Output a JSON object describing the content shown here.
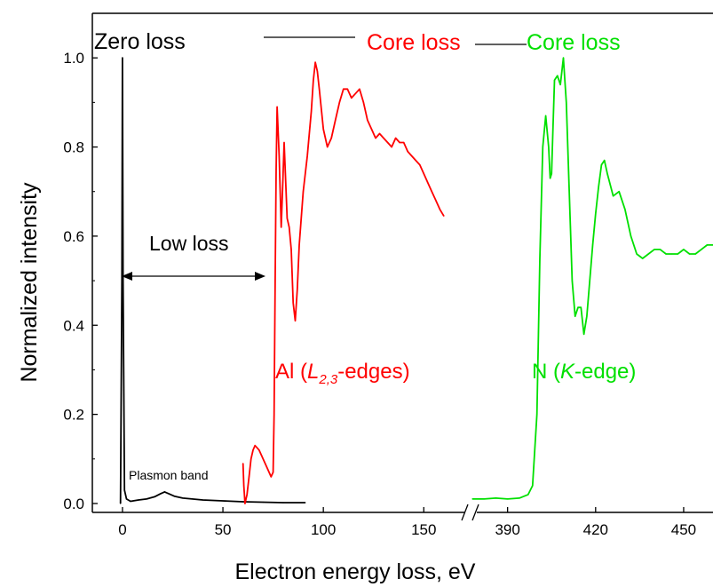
{
  "chart_data": {
    "type": "line",
    "xlabel": "Electron energy loss, eV",
    "ylabel": "Normalized intensity",
    "x_axis_segments": [
      {
        "range": [
          -15,
          168
        ],
        "ticks": [
          0,
          50,
          100,
          150
        ],
        "tick_labels": [
          "0",
          "50",
          "100",
          "150"
        ]
      },
      {
        "range": [
          378,
          460
        ],
        "ticks": [
          390,
          420,
          450
        ],
        "tick_labels": [
          "390",
          "420",
          "450"
        ]
      }
    ],
    "axis_break": true,
    "ylim": [
      -0.02,
      1.1
    ],
    "y_ticks": [
      0.0,
      0.2,
      0.4,
      0.6,
      0.8,
      1.0
    ],
    "y_tick_labels": [
      "0.0",
      "0.2",
      "0.4",
      "0.6",
      "0.8",
      "1.0"
    ],
    "grid": false,
    "series": [
      {
        "color": "#000000",
        "x": [
          -1,
          -0.3,
          0,
          0.3,
          1,
          2,
          4,
          8,
          12,
          16,
          19,
          21,
          23,
          26,
          30,
          40,
          50,
          60,
          70,
          80,
          91
        ],
        "y": [
          0.0,
          0.5,
          1.0,
          0.5,
          0.03,
          0.01,
          0.005,
          0.008,
          0.01,
          0.015,
          0.022,
          0.026,
          0.022,
          0.016,
          0.012,
          0.008,
          0.006,
          0.004,
          0.003,
          0.002,
          0.002
        ]
      },
      {
        "color": "#ff0000",
        "x": [
          60,
          60.4,
          61,
          62,
          63,
          64,
          65,
          66,
          67,
          68,
          70,
          72,
          74,
          75,
          75.5,
          76,
          76.5,
          77,
          78,
          79,
          79.8,
          80.5,
          81,
          82,
          83,
          84,
          85,
          86,
          87,
          88,
          90,
          92,
          94,
          95,
          96,
          97,
          98,
          100,
          102,
          104,
          106,
          108,
          110,
          112,
          114,
          116,
          118,
          120,
          122,
          124,
          126,
          128,
          130,
          132,
          134,
          136,
          138,
          140,
          142,
          144,
          146,
          148,
          150,
          152,
          154,
          156,
          158,
          160
        ],
        "y": [
          0.09,
          0.04,
          0.0,
          0.02,
          0.06,
          0.1,
          0.12,
          0.13,
          0.125,
          0.12,
          0.1,
          0.08,
          0.06,
          0.07,
          0.2,
          0.5,
          0.75,
          0.89,
          0.78,
          0.62,
          0.72,
          0.81,
          0.75,
          0.64,
          0.62,
          0.57,
          0.45,
          0.41,
          0.48,
          0.58,
          0.7,
          0.78,
          0.88,
          0.95,
          0.99,
          0.97,
          0.93,
          0.84,
          0.8,
          0.82,
          0.86,
          0.9,
          0.93,
          0.93,
          0.91,
          0.92,
          0.93,
          0.9,
          0.86,
          0.84,
          0.82,
          0.83,
          0.82,
          0.81,
          0.8,
          0.82,
          0.81,
          0.81,
          0.79,
          0.78,
          0.77,
          0.76,
          0.74,
          0.72,
          0.7,
          0.68,
          0.66,
          0.645
        ]
      },
      {
        "color": "#00e000",
        "x": [
          378,
          382,
          386,
          390,
          394,
          397,
          398.5,
          400,
          401,
          402,
          403,
          404,
          404.5,
          405,
          405.5,
          406,
          407,
          408,
          409,
          410,
          411,
          412,
          413,
          414,
          415,
          416,
          417,
          418,
          419,
          420,
          421,
          422,
          423,
          424,
          426,
          428,
          430,
          432,
          434,
          436,
          438,
          440,
          442,
          444,
          446,
          448,
          450,
          452,
          454,
          456,
          458,
          460
        ],
        "y": [
          0.01,
          0.01,
          0.012,
          0.01,
          0.012,
          0.02,
          0.04,
          0.2,
          0.55,
          0.8,
          0.87,
          0.8,
          0.73,
          0.74,
          0.85,
          0.95,
          0.96,
          0.94,
          1.0,
          0.9,
          0.7,
          0.5,
          0.42,
          0.44,
          0.44,
          0.38,
          0.42,
          0.5,
          0.58,
          0.65,
          0.71,
          0.76,
          0.77,
          0.74,
          0.69,
          0.7,
          0.66,
          0.6,
          0.56,
          0.55,
          0.56,
          0.57,
          0.57,
          0.56,
          0.56,
          0.56,
          0.57,
          0.56,
          0.56,
          0.57,
          0.58,
          0.58
        ]
      }
    ],
    "annotations": {
      "zero_loss": "Zero loss",
      "low_loss": "Low loss",
      "plasmon": "Plasmon band",
      "core_loss_red": "Core loss",
      "core_loss_green": "Core loss",
      "al_prefix": "Al (",
      "al_italic": "L",
      "al_sub": "2,3",
      "al_suffix": "-edges)",
      "n_prefix": "N (",
      "n_italic": "K",
      "n_suffix": "-edge)"
    }
  }
}
